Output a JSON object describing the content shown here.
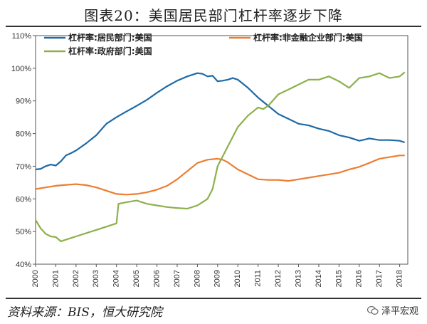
{
  "title": "图表20：美国居民部门杠杆率逐步下降",
  "source": "资料来源：BIS，恒大研究院",
  "brand": "泽平宏观",
  "colors": {
    "household": "#1f6aa5",
    "corporate": "#ed7d31",
    "government": "#8db04a"
  },
  "chart_data": {
    "type": "line",
    "xlabel": "",
    "ylabel": "",
    "xlim": [
      2000,
      2018.4
    ],
    "ylim": [
      40,
      110
    ],
    "y_ticks": [
      "40%",
      "50%",
      "60%",
      "70%",
      "80%",
      "90%",
      "100%",
      "110%"
    ],
    "x_ticks": [
      "2000",
      "2001",
      "2002",
      "2003",
      "2004",
      "2005",
      "2006",
      "2007",
      "2008",
      "2009",
      "2010",
      "2011",
      "2012",
      "2013",
      "2014",
      "2015",
      "2016",
      "2017",
      "2018"
    ],
    "series": [
      {
        "name": "杠杆率:居民部门:美国",
        "x": [
          2000,
          2000.25,
          2000.5,
          2000.75,
          2001,
          2001.25,
          2001.5,
          2001.75,
          2002,
          2002.5,
          2003,
          2003.5,
          2004,
          2004.5,
          2005,
          2005.5,
          2006,
          2006.5,
          2007,
          2007.5,
          2008,
          2008.25,
          2008.5,
          2008.75,
          2009,
          2009.25,
          2009.5,
          2009.75,
          2010,
          2010.5,
          2011,
          2011.5,
          2012,
          2012.5,
          2013,
          2013.5,
          2014,
          2014.5,
          2015,
          2015.5,
          2016,
          2016.5,
          2017,
          2017.5,
          2018,
          2018.25
        ],
        "y": [
          69,
          69.2,
          70,
          70.5,
          70.2,
          71.5,
          73.3,
          74,
          74.8,
          77,
          79.5,
          83,
          85,
          86.8,
          88.5,
          90.3,
          92.5,
          94.5,
          96.2,
          97.5,
          98.5,
          98.3,
          97.5,
          97.7,
          96,
          96.2,
          96.5,
          97,
          96.5,
          94,
          91,
          88.5,
          86,
          84.5,
          83,
          82.5,
          81.5,
          80.8,
          79.5,
          78.8,
          77.8,
          78.5,
          78,
          78,
          77.8,
          77.3
        ]
      },
      {
        "name": "杠杆率:非金融企业部门:美国",
        "x": [
          2000,
          2000.5,
          2001,
          2001.5,
          2002,
          2002.5,
          2003,
          2003.5,
          2004,
          2004.5,
          2005,
          2005.5,
          2006,
          2006.5,
          2007,
          2007.5,
          2008,
          2008.5,
          2009,
          2009.25,
          2009.5,
          2010,
          2010.5,
          2011,
          2011.5,
          2012,
          2012.5,
          2013,
          2013.5,
          2014,
          2014.5,
          2015,
          2015.5,
          2016,
          2016.5,
          2017,
          2017.5,
          2018,
          2018.25
        ],
        "y": [
          63,
          63.5,
          64,
          64.3,
          64.5,
          64.2,
          63.5,
          62.5,
          61.5,
          61.3,
          61.5,
          62,
          62.8,
          64,
          66,
          68.5,
          71,
          72,
          72.3,
          72,
          71.2,
          69,
          67.5,
          66,
          65.8,
          65.8,
          65.5,
          66,
          66.5,
          67,
          67.5,
          68,
          69,
          69.8,
          71,
          72.3,
          72.8,
          73.3,
          73.3
        ]
      },
      {
        "name": "杠杆率:政府部门:美国",
        "x": [
          2000,
          2000.25,
          2000.5,
          2000.75,
          2001,
          2001.25,
          2001.5,
          2001.75,
          2002,
          2002.5,
          2003,
          2003.5,
          2004,
          2004.1,
          2004.5,
          2005,
          2005.5,
          2006,
          2006.5,
          2007,
          2007.5,
          2008,
          2008.25,
          2008.5,
          2008.75,
          2009,
          2009.5,
          2010,
          2010.5,
          2011,
          2011.25,
          2011.5,
          2012,
          2012.5,
          2013,
          2013.5,
          2014,
          2014.5,
          2015,
          2015.5,
          2016,
          2016.5,
          2017,
          2017.5,
          2018,
          2018.25
        ],
        "y": [
          53.5,
          51,
          49.3,
          48.5,
          48.3,
          47,
          47.5,
          48,
          48.5,
          49.5,
          50.5,
          51.5,
          52.5,
          58.5,
          59,
          59.5,
          58.5,
          58,
          57.5,
          57.2,
          57,
          58,
          59,
          60,
          63,
          70,
          76,
          82,
          85.5,
          88,
          87.5,
          88.5,
          92,
          93.5,
          95,
          96.5,
          96.5,
          97.5,
          96,
          94,
          97,
          97.5,
          98.5,
          97,
          97.5,
          98.8
        ]
      }
    ]
  }
}
